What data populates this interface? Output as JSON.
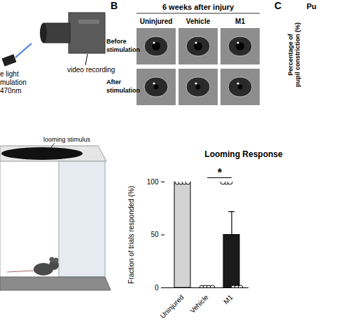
{
  "panels": {
    "A": {
      "camera_label": "video recording",
      "light_label": [
        "e light",
        "mulation",
        "470nm"
      ]
    },
    "B": {
      "label": "B",
      "title": "6 weeks after injury",
      "columns": [
        "Uninjured",
        "Vehicle",
        "M1"
      ],
      "rows": [
        [
          "Before",
          "stimulation"
        ],
        [
          "After",
          "stimulation"
        ]
      ]
    },
    "C": {
      "label": "C",
      "title": "Pu",
      "ylabel": [
        "Percentage of",
        "pupil constriction (%)"
      ]
    },
    "D": {
      "stimulus_label": "looming stimulus"
    }
  },
  "chart_data": {
    "type": "bar",
    "title": "Looming Response",
    "ylabel": "Fraction of trials responded (%)",
    "categories": [
      "Uninjured",
      "Vehicle",
      "M1"
    ],
    "values": [
      100,
      0,
      50
    ],
    "errors": [
      0,
      0,
      22
    ],
    "points": [
      [
        100,
        100,
        100,
        100
      ],
      [
        0,
        0,
        0,
        0
      ],
      [
        100,
        100,
        100,
        0,
        0,
        0
      ]
    ],
    "colors": [
      "#d3d3d3",
      "#000000",
      "#1a1a1a"
    ],
    "ylim": [
      0,
      100
    ],
    "yticks": [
      0,
      50,
      100
    ],
    "annotations": [
      {
        "text": "*",
        "from": "Vehicle",
        "to": "M1"
      }
    ]
  }
}
